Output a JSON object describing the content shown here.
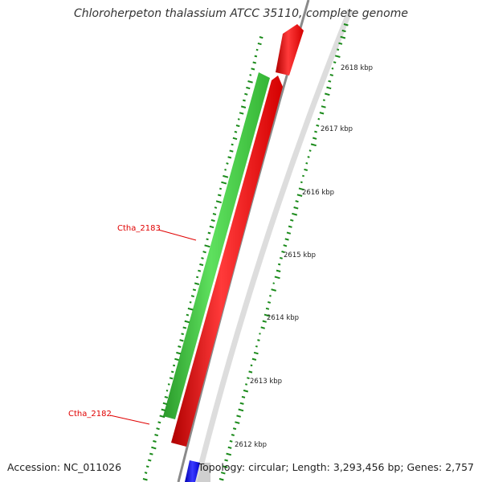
{
  "title": "Chloroherpeton thalassium ATCC 35110, complete genome",
  "accession": "Accession: NC_011026",
  "summary": "Topology: circular; Length: 3,293,456 bp; Genes: 2,757",
  "colors": {
    "forward_gene": "#ff2020",
    "reverse_gene": "#3ec83e",
    "rna_gene": "#1a1aff",
    "backbone": "#888888",
    "gene_label": "#e00000",
    "gc_marks": "#1a8a1a"
  },
  "tick_labels": [
    {
      "id": "2618",
      "text": "2618 kbp"
    },
    {
      "id": "2617",
      "text": "2617 kbp"
    },
    {
      "id": "2616",
      "text": "2616 kbp"
    },
    {
      "id": "2615",
      "text": "2615 kbp"
    },
    {
      "id": "2614",
      "text": "2614 kbp"
    },
    {
      "id": "2613",
      "text": "2613 kbp"
    },
    {
      "id": "2612",
      "text": "2612 kbp"
    }
  ],
  "gene_labels": [
    {
      "id": "ctha-2183",
      "text": "Ctha_2183"
    },
    {
      "id": "ctha-2182",
      "text": "Ctha_2182"
    }
  ]
}
